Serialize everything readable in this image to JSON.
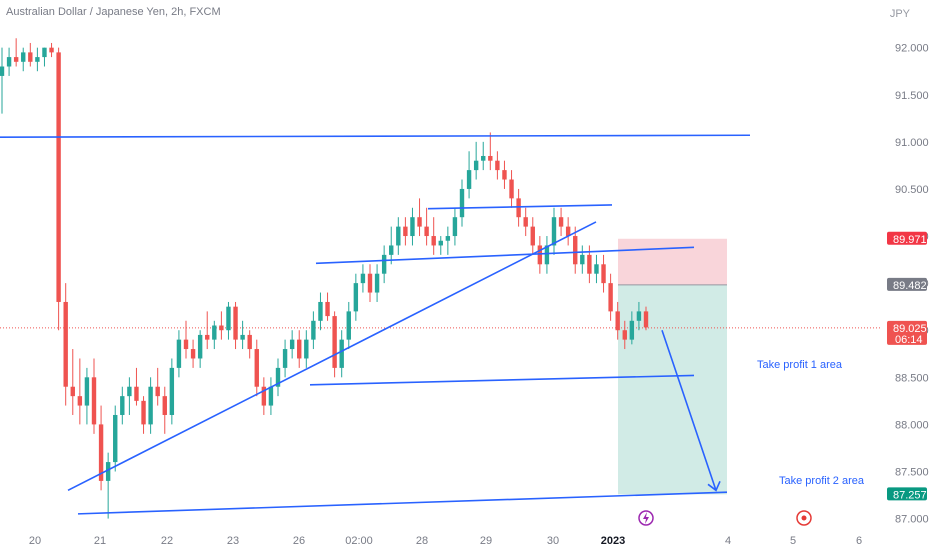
{
  "header": {
    "title": "Australian Dollar / Japanese Yen, 2h, FXCM",
    "currency": "JPY"
  },
  "colors": {
    "up": "#26a69a",
    "down": "#ef5350",
    "line": "#2962ff",
    "stop_zone": "#f9d5da",
    "target_zone": "#d1ebe6"
  },
  "chart_data": {
    "type": "candlestick",
    "ylim": [
      86.9,
      92.4
    ],
    "yticks": [
      "92.000",
      "91.500",
      "91.000",
      "90.500",
      "90.000",
      "89.500",
      "89.000",
      "88.500",
      "88.000",
      "87.500",
      "87.000"
    ],
    "xticks": [
      "20",
      "21",
      "22",
      "23",
      "26",
      "02:00",
      "28",
      "29",
      "30",
      "2023",
      "4",
      "5",
      "6"
    ],
    "price_tags": [
      {
        "label": "89.971",
        "value": 89.971,
        "color": "#f23645"
      },
      {
        "label": "89.482",
        "value": 89.482,
        "color": "#787b86"
      },
      {
        "label": "89.025",
        "value": 89.025,
        "color": "#ef5350",
        "countdown": "06:14"
      },
      {
        "label": "87.257",
        "value": 87.257,
        "color": "#089981"
      }
    ],
    "annotations": [
      {
        "text": "Take profit 1 area"
      },
      {
        "text": "Take profit 2 area"
      }
    ],
    "candles": [
      [
        91.7,
        92.0,
        91.3,
        91.8
      ],
      [
        91.8,
        92.0,
        91.7,
        91.9
      ],
      [
        91.9,
        92.1,
        91.8,
        91.85
      ],
      [
        91.85,
        92.0,
        91.75,
        91.95
      ],
      [
        91.95,
        92.05,
        91.8,
        91.85
      ],
      [
        91.85,
        92.0,
        91.75,
        91.9
      ],
      [
        91.9,
        92.0,
        91.8,
        92.0
      ],
      [
        92.0,
        92.05,
        91.9,
        91.95
      ],
      [
        91.95,
        92.0,
        89.0,
        89.3
      ],
      [
        89.3,
        89.5,
        88.2,
        88.4
      ],
      [
        88.4,
        88.8,
        88.1,
        88.3
      ],
      [
        88.3,
        88.7,
        88.0,
        88.2
      ],
      [
        88.2,
        88.6,
        88.0,
        88.5
      ],
      [
        88.5,
        88.7,
        87.9,
        88.0
      ],
      [
        88.0,
        88.2,
        87.3,
        87.4
      ],
      [
        87.4,
        87.7,
        87.0,
        87.6
      ],
      [
        87.6,
        88.2,
        87.5,
        88.1
      ],
      [
        88.1,
        88.4,
        88.0,
        88.3
      ],
      [
        88.3,
        88.5,
        88.1,
        88.4
      ],
      [
        88.4,
        88.6,
        88.2,
        88.25
      ],
      [
        88.25,
        88.3,
        87.9,
        88.0
      ],
      [
        88.0,
        88.5,
        87.9,
        88.4
      ],
      [
        88.4,
        88.6,
        88.2,
        88.3
      ],
      [
        88.3,
        88.4,
        87.9,
        88.1
      ],
      [
        88.1,
        88.7,
        88.0,
        88.6
      ],
      [
        88.6,
        89.0,
        88.5,
        88.9
      ],
      [
        88.9,
        89.1,
        88.7,
        88.8
      ],
      [
        88.8,
        88.9,
        88.6,
        88.7
      ],
      [
        88.7,
        89.0,
        88.6,
        88.95
      ],
      [
        88.95,
        89.2,
        88.8,
        88.9
      ],
      [
        88.9,
        89.1,
        88.8,
        89.05
      ],
      [
        89.05,
        89.2,
        88.9,
        89.0
      ],
      [
        89.0,
        89.3,
        88.9,
        89.25
      ],
      [
        89.25,
        89.3,
        88.8,
        88.9
      ],
      [
        88.9,
        89.1,
        88.8,
        88.95
      ],
      [
        88.95,
        89.0,
        88.7,
        88.8
      ],
      [
        88.8,
        88.9,
        88.3,
        88.4
      ],
      [
        88.4,
        88.5,
        88.1,
        88.2
      ],
      [
        88.2,
        88.5,
        88.1,
        88.4
      ],
      [
        88.4,
        88.7,
        88.3,
        88.6
      ],
      [
        88.6,
        88.9,
        88.5,
        88.8
      ],
      [
        88.8,
        89.0,
        88.7,
        88.9
      ],
      [
        88.9,
        89.0,
        88.6,
        88.7
      ],
      [
        88.7,
        89.0,
        88.6,
        88.9
      ],
      [
        88.9,
        89.2,
        88.8,
        89.1
      ],
      [
        89.1,
        89.4,
        89.0,
        89.3
      ],
      [
        89.3,
        89.4,
        89.1,
        89.15
      ],
      [
        89.15,
        89.2,
        88.5,
        88.6
      ],
      [
        88.6,
        89.0,
        88.5,
        88.9
      ],
      [
        88.9,
        89.3,
        88.8,
        89.2
      ],
      [
        89.2,
        89.6,
        89.1,
        89.5
      ],
      [
        89.5,
        89.7,
        89.4,
        89.6
      ],
      [
        89.6,
        89.7,
        89.3,
        89.4
      ],
      [
        89.4,
        89.7,
        89.3,
        89.6
      ],
      [
        89.6,
        89.9,
        89.5,
        89.8
      ],
      [
        89.8,
        90.1,
        89.7,
        89.9
      ],
      [
        89.9,
        90.2,
        89.8,
        90.1
      ],
      [
        90.1,
        90.2,
        89.9,
        90.0
      ],
      [
        90.0,
        90.3,
        89.9,
        90.2
      ],
      [
        90.2,
        90.4,
        90.0,
        90.1
      ],
      [
        90.1,
        90.3,
        89.9,
        90.0
      ],
      [
        90.0,
        90.2,
        89.8,
        89.9
      ],
      [
        89.9,
        90.0,
        89.8,
        89.95
      ],
      [
        89.95,
        90.1,
        89.8,
        90.0
      ],
      [
        90.0,
        90.3,
        89.9,
        90.2
      ],
      [
        90.2,
        90.6,
        90.1,
        90.5
      ],
      [
        90.5,
        90.9,
        90.4,
        90.7
      ],
      [
        90.7,
        91.0,
        90.6,
        90.8
      ],
      [
        90.8,
        91.0,
        90.7,
        90.85
      ],
      [
        90.85,
        91.1,
        90.7,
        90.8
      ],
      [
        90.8,
        90.9,
        90.6,
        90.7
      ],
      [
        90.7,
        90.8,
        90.5,
        90.6
      ],
      [
        90.6,
        90.7,
        90.3,
        90.4
      ],
      [
        90.4,
        90.5,
        90.1,
        90.2
      ],
      [
        90.2,
        90.3,
        90.0,
        90.1
      ],
      [
        90.1,
        90.2,
        89.8,
        89.9
      ],
      [
        89.9,
        90.0,
        89.6,
        89.7
      ],
      [
        89.7,
        90.0,
        89.6,
        89.9
      ],
      [
        89.9,
        90.3,
        89.8,
        90.2
      ],
      [
        90.2,
        90.3,
        90.0,
        90.1
      ],
      [
        90.1,
        90.2,
        89.9,
        90.0
      ],
      [
        90.0,
        90.1,
        89.6,
        89.7
      ],
      [
        89.7,
        89.9,
        89.6,
        89.8
      ],
      [
        89.8,
        89.9,
        89.5,
        89.6
      ],
      [
        89.6,
        89.8,
        89.5,
        89.7
      ],
      [
        89.7,
        89.8,
        89.4,
        89.5
      ],
      [
        89.5,
        89.6,
        89.1,
        89.2
      ],
      [
        89.2,
        89.3,
        88.9,
        89.0
      ],
      [
        89.0,
        89.1,
        88.8,
        88.9
      ],
      [
        88.9,
        89.2,
        88.85,
        89.1
      ],
      [
        89.1,
        89.3,
        89.0,
        89.2
      ],
      [
        89.2,
        89.25,
        89.0,
        89.03
      ]
    ]
  }
}
